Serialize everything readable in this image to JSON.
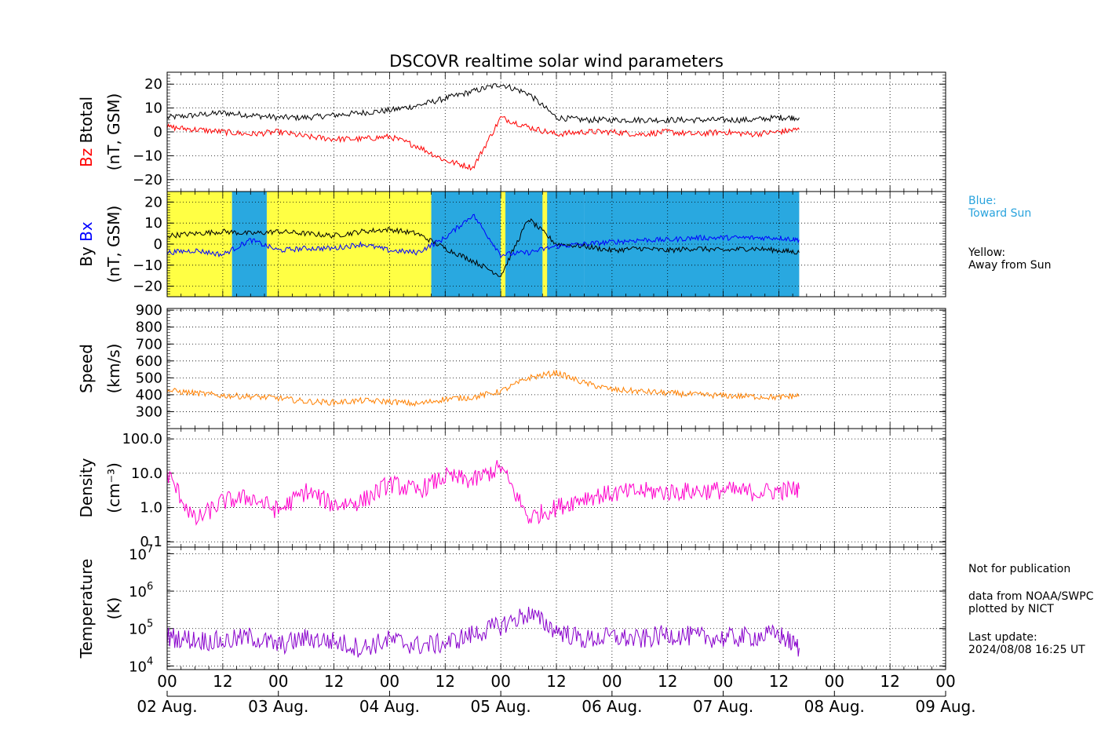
{
  "title": "DSCOVR realtime solar wind parameters",
  "legend_notes": {
    "blue": "Blue:\nToward Sun",
    "yellow": "Yellow:\nAway from Sun"
  },
  "footer_notes": {
    "not_for_pub": "Not for publication",
    "source": "data from NOAA/SWPC\nplotted by NICT",
    "last_update": "Last update:\n2024/08/08 16:25 UT"
  },
  "colors": {
    "btotal": "#000000",
    "bz": "#ff0000",
    "by": "#000000",
    "bx": "#0000ff",
    "speed": "#ff8000",
    "density": "#ff00cc",
    "temperature": "#8800cc",
    "toward_sun": "#29a8e0",
    "away_sun": "#ffff44"
  },
  "chart_data": [
    {
      "type": "line",
      "panel": "magnetic-field-total",
      "ylabel_parts": [
        "Bz",
        "Btotal",
        "(nT, GSM)"
      ],
      "ylim": [
        -25,
        25
      ],
      "yticks": [
        -20,
        -10,
        0,
        10,
        20
      ],
      "ytick_labels": [
        "−20",
        "−10",
        "0",
        "10",
        "20"
      ],
      "x_hours": [
        0,
        6,
        12,
        18,
        24,
        30,
        36,
        42,
        48,
        54,
        60,
        66,
        72,
        78,
        84,
        90,
        96,
        102,
        108,
        114,
        120,
        126,
        132,
        136.4
      ],
      "series": [
        {
          "name": "Btotal",
          "values": [
            6,
            7,
            8,
            7,
            6,
            6,
            7,
            8,
            9,
            11,
            14,
            17,
            20,
            16,
            6,
            5,
            5,
            5,
            5,
            5,
            5,
            5,
            6,
            6
          ]
        },
        {
          "name": "Bz",
          "values": [
            2,
            1,
            0,
            -1,
            0,
            -2,
            -3,
            -3,
            -2,
            -6,
            -12,
            -15,
            6,
            2,
            -1,
            0,
            0,
            -1,
            0,
            -1,
            0,
            -1,
            0,
            1
          ]
        }
      ]
    },
    {
      "type": "line",
      "panel": "magnetic-field-components",
      "ylabel_parts": [
        "By",
        "Bx",
        "(nT, GSM)"
      ],
      "ylim": [
        -25,
        25
      ],
      "yticks": [
        -20,
        -10,
        0,
        10,
        20
      ],
      "ytick_labels": [
        "−20",
        "−10",
        "0",
        "10",
        "20"
      ],
      "sector_bands": [
        {
          "start": 0,
          "end": 14,
          "sector": "away"
        },
        {
          "start": 14,
          "end": 21.5,
          "sector": "toward"
        },
        {
          "start": 21.5,
          "end": 57,
          "sector": "away"
        },
        {
          "start": 57,
          "end": 90,
          "sector": "toward"
        },
        {
          "start": 72,
          "end": 73,
          "sector": "away"
        },
        {
          "start": 81,
          "end": 82,
          "sector": "away"
        },
        {
          "start": 90,
          "end": 136.4,
          "sector": "toward"
        }
      ],
      "x_hours": [
        0,
        6,
        12,
        18,
        24,
        30,
        36,
        42,
        48,
        54,
        60,
        66,
        72,
        78,
        84,
        90,
        96,
        102,
        108,
        114,
        120,
        126,
        132,
        136.4
      ],
      "series": [
        {
          "name": "By",
          "values": [
            4,
            5,
            6,
            5,
            6,
            5,
            4,
            6,
            7,
            5,
            -2,
            -8,
            -15,
            12,
            0,
            -1,
            -3,
            -2,
            -3,
            -2,
            -3,
            -2,
            -3,
            -4
          ]
        },
        {
          "name": "Bx",
          "values": [
            -4,
            -3,
            -5,
            2,
            -3,
            -2,
            -2,
            0,
            -3,
            -4,
            3,
            14,
            -5,
            -4,
            -1,
            0,
            1,
            2,
            2,
            3,
            3,
            3,
            3,
            2
          ]
        }
      ]
    },
    {
      "type": "line",
      "panel": "solar-wind-speed",
      "ylabel": "Speed",
      "yunit": "(km/s)",
      "ylim": [
        200,
        910
      ],
      "yticks": [
        300,
        400,
        500,
        600,
        700,
        800,
        900
      ],
      "ytick_labels": [
        "300",
        "400",
        "500",
        "600",
        "700",
        "800",
        "900"
      ],
      "x_hours": [
        0,
        6,
        12,
        18,
        24,
        30,
        36,
        42,
        48,
        54,
        60,
        66,
        72,
        78,
        84,
        90,
        96,
        102,
        108,
        114,
        120,
        126,
        132,
        136.4
      ],
      "series": [
        {
          "name": "Speed",
          "values": [
            425,
            410,
            395,
            390,
            380,
            360,
            355,
            365,
            360,
            345,
            375,
            385,
            420,
            500,
            530,
            470,
            430,
            420,
            410,
            400,
            395,
            390,
            385,
            395
          ]
        }
      ]
    },
    {
      "type": "line",
      "panel": "proton-density",
      "ylabel": "Density",
      "yunit": "(cm⁻³)",
      "yscale": "log",
      "ylim": [
        0.07,
        200
      ],
      "yticks": [
        0.1,
        1.0,
        10.0,
        100.0
      ],
      "ytick_labels": [
        "0.1",
        "1.0",
        "10.0",
        "100.0"
      ],
      "x_hours": [
        0,
        6,
        12,
        18,
        24,
        30,
        36,
        42,
        48,
        54,
        60,
        66,
        72,
        78,
        84,
        90,
        96,
        102,
        108,
        114,
        120,
        126,
        132,
        136.4
      ],
      "series": [
        {
          "name": "Density",
          "values": [
            10,
            0.4,
            1.5,
            2,
            0.8,
            3,
            1.2,
            1.5,
            5,
            3,
            8,
            6,
            15,
            0.5,
            1,
            2,
            2.5,
            3,
            2.8,
            3,
            3.2,
            2.8,
            3,
            3.5
          ]
        }
      ]
    },
    {
      "type": "line",
      "panel": "proton-temperature",
      "ylabel": "Temperature",
      "yunit": "(K)",
      "yscale": "log",
      "ylim": [
        8000,
        15000000
      ],
      "yticks": [
        10000,
        100000,
        1000000,
        10000000
      ],
      "ytick_exponents": [
        "4",
        "5",
        "6",
        "7"
      ],
      "x_hours": [
        0,
        6,
        12,
        18,
        24,
        30,
        36,
        42,
        48,
        54,
        60,
        66,
        72,
        78,
        84,
        90,
        96,
        102,
        108,
        114,
        120,
        126,
        132,
        136.4
      ],
      "series": [
        {
          "name": "Temperature",
          "values": [
            60000,
            50000,
            45000,
            60000,
            35000,
            55000,
            45000,
            30000,
            50000,
            35000,
            40000,
            70000,
            120000,
            250000,
            90000,
            50000,
            60000,
            50000,
            70000,
            60000,
            55000,
            60000,
            70000,
            30000
          ]
        }
      ]
    }
  ],
  "x_axis": {
    "range_hours": [
      0,
      168
    ],
    "major_tick_hours": [
      0,
      12,
      24,
      36,
      48,
      60,
      72,
      84,
      96,
      108,
      120,
      132,
      144,
      156,
      168
    ],
    "hour_labels": [
      "00",
      "12",
      "00",
      "12",
      "00",
      "12",
      "00",
      "12",
      "00",
      "12",
      "00",
      "12",
      "00",
      "12",
      "00"
    ],
    "date_labels": [
      "02 Aug.",
      "03 Aug.",
      "04 Aug.",
      "05 Aug.",
      "06 Aug.",
      "07 Aug.",
      "08 Aug.",
      "09 Aug."
    ]
  }
}
